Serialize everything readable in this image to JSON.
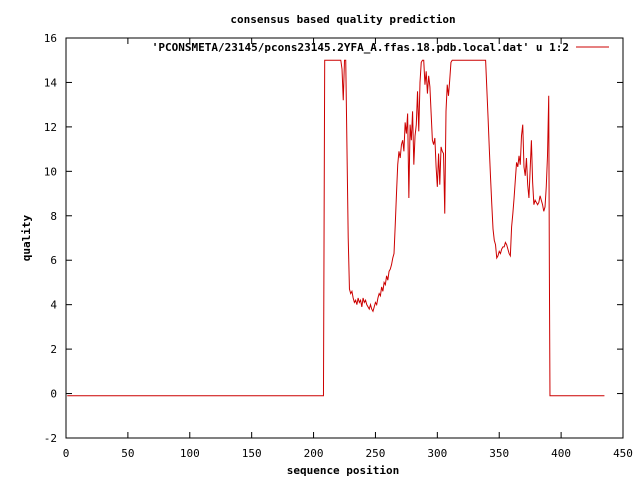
{
  "chart_data": {
    "type": "line",
    "title": "consensus based quality prediction",
    "xlabel": "sequence position",
    "ylabel": "quality",
    "xlim": [
      0,
      450
    ],
    "ylim": [
      -2,
      16
    ],
    "xticks": [
      0,
      50,
      100,
      150,
      200,
      250,
      300,
      350,
      400,
      450
    ],
    "yticks": [
      -2,
      0,
      2,
      4,
      6,
      8,
      10,
      12,
      14,
      16
    ],
    "grid": false,
    "legend_position": "top-right",
    "colors": {
      "series": "#cc0000",
      "axes": "#000000"
    },
    "series": [
      {
        "name": "'PCONSMETA/23145/pcons23145.2YFA_A.ffas.18.pdb.local.dat' u 1:2",
        "points": [
          [
            1,
            -0.1
          ],
          [
            208,
            -0.1
          ],
          [
            208.5,
            7.5
          ],
          [
            209,
            15
          ],
          [
            222,
            15
          ],
          [
            223,
            14.6
          ],
          [
            224,
            13.2
          ],
          [
            225,
            15
          ],
          [
            226,
            15
          ],
          [
            227,
            11
          ],
          [
            228,
            7
          ],
          [
            229,
            4.7
          ],
          [
            230,
            4.5
          ],
          [
            231,
            4.6
          ],
          [
            232,
            4.3
          ],
          [
            233,
            4.1
          ],
          [
            234,
            4.2
          ],
          [
            235,
            4.0
          ],
          [
            236,
            4.3
          ],
          [
            237,
            4.1
          ],
          [
            238,
            4.2
          ],
          [
            239,
            3.9
          ],
          [
            240,
            4.3
          ],
          [
            241,
            4.1
          ],
          [
            242,
            4.2
          ],
          [
            243,
            4.0
          ],
          [
            244,
            3.9
          ],
          [
            245,
            3.8
          ],
          [
            246,
            4.0
          ],
          [
            247,
            3.8
          ],
          [
            248,
            3.7
          ],
          [
            249,
            3.9
          ],
          [
            250,
            4.1
          ],
          [
            251,
            4.0
          ],
          [
            252,
            4.3
          ],
          [
            253,
            4.5
          ],
          [
            254,
            4.4
          ],
          [
            255,
            4.8
          ],
          [
            256,
            4.6
          ],
          [
            257,
            5.0
          ],
          [
            258,
            4.9
          ],
          [
            259,
            5.3
          ],
          [
            260,
            5.1
          ],
          [
            261,
            5.5
          ],
          [
            262,
            5.6
          ],
          [
            263,
            5.8
          ],
          [
            264,
            6.1
          ],
          [
            265,
            6.3
          ],
          [
            266,
            7.6
          ],
          [
            267,
            9.0
          ],
          [
            268,
            10.3
          ],
          [
            269,
            10.9
          ],
          [
            270,
            10.6
          ],
          [
            271,
            11.2
          ],
          [
            272,
            11.4
          ],
          [
            273,
            10.9
          ],
          [
            274,
            12.2
          ],
          [
            275,
            11.7
          ],
          [
            276,
            12.6
          ],
          [
            277,
            8.8
          ],
          [
            278,
            12.1
          ],
          [
            279,
            11.4
          ],
          [
            280,
            12.7
          ],
          [
            281,
            10.3
          ],
          [
            282,
            11.6
          ],
          [
            283,
            12.1
          ],
          [
            284,
            13.6
          ],
          [
            285,
            11.8
          ],
          [
            286,
            14.0
          ],
          [
            287,
            14.9
          ],
          [
            288,
            15
          ],
          [
            289,
            15
          ],
          [
            290,
            13.9
          ],
          [
            291,
            14.5
          ],
          [
            292,
            13.5
          ],
          [
            293,
            14.3
          ],
          [
            294,
            13.8
          ],
          [
            295,
            12.6
          ],
          [
            296,
            11.4
          ],
          [
            297,
            11.2
          ],
          [
            298,
            11.5
          ],
          [
            299,
            10.2
          ],
          [
            300,
            9.3
          ],
          [
            301,
            10.8
          ],
          [
            302,
            9.4
          ],
          [
            303,
            11.1
          ],
          [
            304,
            10.9
          ],
          [
            305,
            10.8
          ],
          [
            306,
            8.1
          ],
          [
            307,
            12.7
          ],
          [
            308,
            13.9
          ],
          [
            309,
            13.4
          ],
          [
            310,
            14.1
          ],
          [
            311,
            14.9
          ],
          [
            312,
            15
          ],
          [
            339,
            15
          ],
          [
            340,
            13.7
          ],
          [
            341,
            12.4
          ],
          [
            342,
            11.0
          ],
          [
            343,
            9.7
          ],
          [
            344,
            8.5
          ],
          [
            345,
            7.4
          ],
          [
            346,
            6.9
          ],
          [
            347,
            6.7
          ],
          [
            348,
            6.1
          ],
          [
            349,
            6.2
          ],
          [
            350,
            6.4
          ],
          [
            351,
            6.3
          ],
          [
            352,
            6.5
          ],
          [
            353,
            6.6
          ],
          [
            354,
            6.6
          ],
          [
            355,
            6.8
          ],
          [
            356,
            6.7
          ],
          [
            357,
            6.5
          ],
          [
            358,
            6.3
          ],
          [
            359,
            6.2
          ],
          [
            360,
            7.5
          ],
          [
            361,
            8.1
          ],
          [
            362,
            8.8
          ],
          [
            363,
            9.6
          ],
          [
            364,
            10.4
          ],
          [
            365,
            10.2
          ],
          [
            366,
            10.7
          ],
          [
            367,
            10.3
          ],
          [
            368,
            11.6
          ],
          [
            369,
            12.1
          ],
          [
            370,
            10.2
          ],
          [
            371,
            9.8
          ],
          [
            372,
            10.6
          ],
          [
            373,
            9.4
          ],
          [
            374,
            8.8
          ],
          [
            375,
            10.1
          ],
          [
            376,
            11.4
          ],
          [
            377,
            9.5
          ],
          [
            378,
            8.5
          ],
          [
            379,
            8.7
          ],
          [
            380,
            8.6
          ],
          [
            381,
            8.5
          ],
          [
            382,
            8.6
          ],
          [
            383,
            8.9
          ],
          [
            384,
            8.7
          ],
          [
            385,
            8.5
          ],
          [
            386,
            8.2
          ],
          [
            387,
            8.4
          ],
          [
            388,
            9.3
          ],
          [
            389,
            10.7
          ],
          [
            390,
            13.4
          ],
          [
            390.5,
            5.8
          ],
          [
            391,
            -0.1
          ],
          [
            435,
            -0.1
          ]
        ]
      }
    ]
  }
}
